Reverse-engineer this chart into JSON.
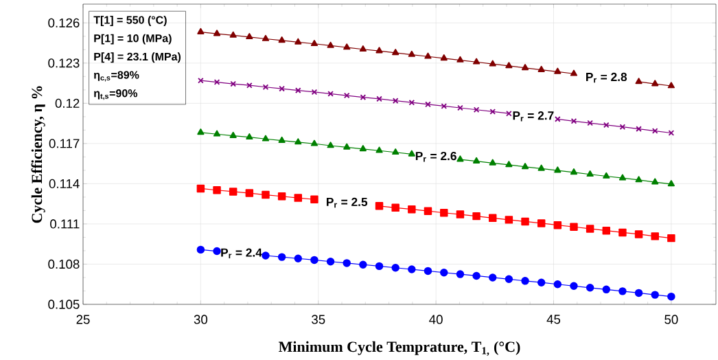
{
  "chart_data": {
    "type": "line",
    "xlabel": "Minimum Cycle Temprature, T$_{1,}$ (°C)",
    "ylabel": "Cycle Efficiency, η %",
    "x": [
      30,
      30.69,
      31.38,
      32.07,
      32.76,
      33.45,
      34.14,
      34.83,
      35.52,
      36.21,
      36.9,
      37.59,
      38.28,
      38.97,
      39.66,
      40.34,
      41.03,
      41.72,
      42.41,
      43.1,
      43.79,
      44.48,
      45.17,
      45.86,
      46.55,
      47.24,
      47.93,
      48.62,
      49.31,
      50
    ],
    "series": [
      {
        "name": "P$_{r}$ = 2.4",
        "color": "#0000ff",
        "marker": "circle",
        "values": [
          0.10908,
          0.10897,
          null,
          null,
          0.10864,
          0.10853,
          0.10842,
          0.10831,
          0.10819,
          0.10808,
          0.10796,
          0.10785,
          0.10773,
          0.10761,
          0.10749,
          0.10737,
          0.10725,
          0.10713,
          0.107,
          0.10688,
          0.10675,
          0.10663,
          0.1065,
          0.10637,
          0.10624,
          0.10611,
          0.10598,
          0.10585,
          0.10571,
          0.10558
        ]
      },
      {
        "name": "P$_{r}$ = 2.5",
        "color": "#ff0000",
        "marker": "square",
        "values": [
          0.11364,
          0.11352,
          0.11341,
          0.1133,
          0.11317,
          0.11306,
          0.11294,
          0.11283,
          null,
          null,
          null,
          0.11234,
          0.11221,
          0.11209,
          0.11196,
          0.11183,
          0.11171,
          0.11158,
          0.11144,
          0.11131,
          0.11118,
          0.11105,
          0.11091,
          0.11078,
          0.11064,
          0.1105,
          0.11036,
          0.11023,
          0.11008,
          0.10994
        ]
      },
      {
        "name": "P$_{r}$ = 2.6",
        "color": "#008000",
        "marker": "triangle",
        "values": [
          0.11782,
          0.1177,
          0.11758,
          0.11747,
          0.11734,
          0.11722,
          0.1171,
          0.11698,
          0.11684,
          0.11672,
          0.11659,
          0.11647,
          0.11634,
          0.11621,
          null,
          null,
          0.11581,
          0.11568,
          0.11554,
          0.11541,
          0.11526,
          0.11513,
          0.11499,
          0.11485,
          0.1147,
          0.11456,
          0.11442,
          0.11428,
          0.11412,
          0.11398
        ]
      },
      {
        "name": "P$_{r}$ = 2.7",
        "color": "#800080",
        "marker": "cross",
        "values": [
          0.1217,
          0.12158,
          0.12145,
          0.12134,
          0.12121,
          0.12109,
          0.12096,
          0.12084,
          0.12071,
          0.12058,
          0.12045,
          0.12033,
          0.12019,
          0.12006,
          0.11992,
          0.11979,
          0.11966,
          0.11952,
          0.11938,
          0.11924,
          null,
          null,
          0.11882,
          0.11867,
          0.11853,
          0.11838,
          0.11824,
          0.11809,
          0.11794,
          0.11779
        ]
      },
      {
        "name": "P$_{r}$ = 2.8",
        "color": "#800000",
        "marker": "triangle",
        "values": [
          0.12532,
          0.12519,
          0.12507,
          0.12495,
          0.12481,
          0.12469,
          0.12456,
          0.12444,
          0.1243,
          0.12417,
          0.12403,
          0.12391,
          0.12377,
          0.12363,
          0.12349,
          0.12336,
          0.12322,
          0.12308,
          0.12293,
          0.12279,
          0.12264,
          0.1225,
          0.12236,
          0.12221,
          null,
          null,
          null,
          0.12161,
          0.12145,
          0.1213
        ]
      }
    ],
    "xlim": [
      25,
      51.9
    ],
    "xticks": [
      25,
      30,
      35,
      40,
      45,
      50
    ],
    "ylim": [
      0.105,
      0.1274
    ],
    "yticks": [
      0.105,
      0.108,
      0.111,
      0.114,
      0.117,
      0.12,
      0.123,
      0.126
    ],
    "grid": true,
    "line_style": "solid",
    "annotations": [
      "T[1] = 550 (°C)",
      "P[1] = 10 (MPa)",
      "P[4] = 23.1 (MPa)",
      "η$_{c,s}$=89%",
      "η$_{t,s}$=90%"
    ]
  }
}
